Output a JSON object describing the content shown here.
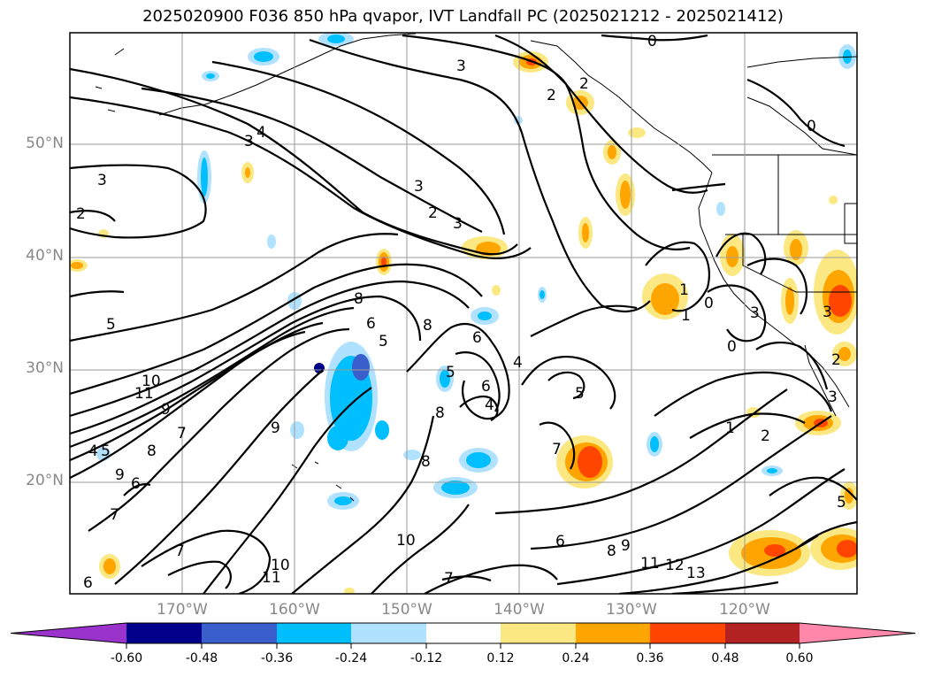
{
  "title": "2025020900 F036 850 hPa qvapor, IVT Landfall PC (2025021212 - 2025021412)",
  "map": {
    "lat_labels": [
      "50°N",
      "40°N",
      "30°N",
      "20°N"
    ],
    "lon_labels": [
      "170°W",
      "160°W",
      "150°W",
      "140°W",
      "130°W",
      "120°W"
    ],
    "contour_labels": [
      "0",
      "3",
      "2",
      "3",
      "4",
      "3",
      "2",
      "3",
      "2",
      "3",
      "2",
      "8",
      "6",
      "5",
      "5",
      "8",
      "6",
      "4",
      "5",
      "6",
      "4",
      "5",
      "9",
      "8",
      "7",
      "11",
      "10",
      "9",
      "8",
      "7",
      "6",
      "5",
      "4",
      "7",
      "9",
      "8",
      "10",
      "11",
      "6",
      "7",
      "10",
      "7",
      "8",
      "9",
      "11",
      "12",
      "13",
      "6",
      "5",
      "1",
      "2",
      "1",
      "0",
      "0",
      "3",
      "3",
      "0",
      "2",
      "1",
      "3"
    ],
    "extent": {
      "lon_min": -180,
      "lon_max": -110,
      "lat_min": 10,
      "lat_max": 60
    }
  },
  "colorbar": {
    "ticks": [
      "-0.60",
      "-0.48",
      "-0.36",
      "-0.24",
      "-0.12",
      "0.12",
      "0.24",
      "0.36",
      "0.48",
      "0.60"
    ],
    "colors": [
      "#9933cc",
      "#00008b",
      "#3a5fcd",
      "#00bfff",
      "#b0e2ff",
      "#ffffff",
      "#fce883",
      "#ffa500",
      "#ff4500",
      "#b22222",
      "#ff88aa"
    ]
  }
}
